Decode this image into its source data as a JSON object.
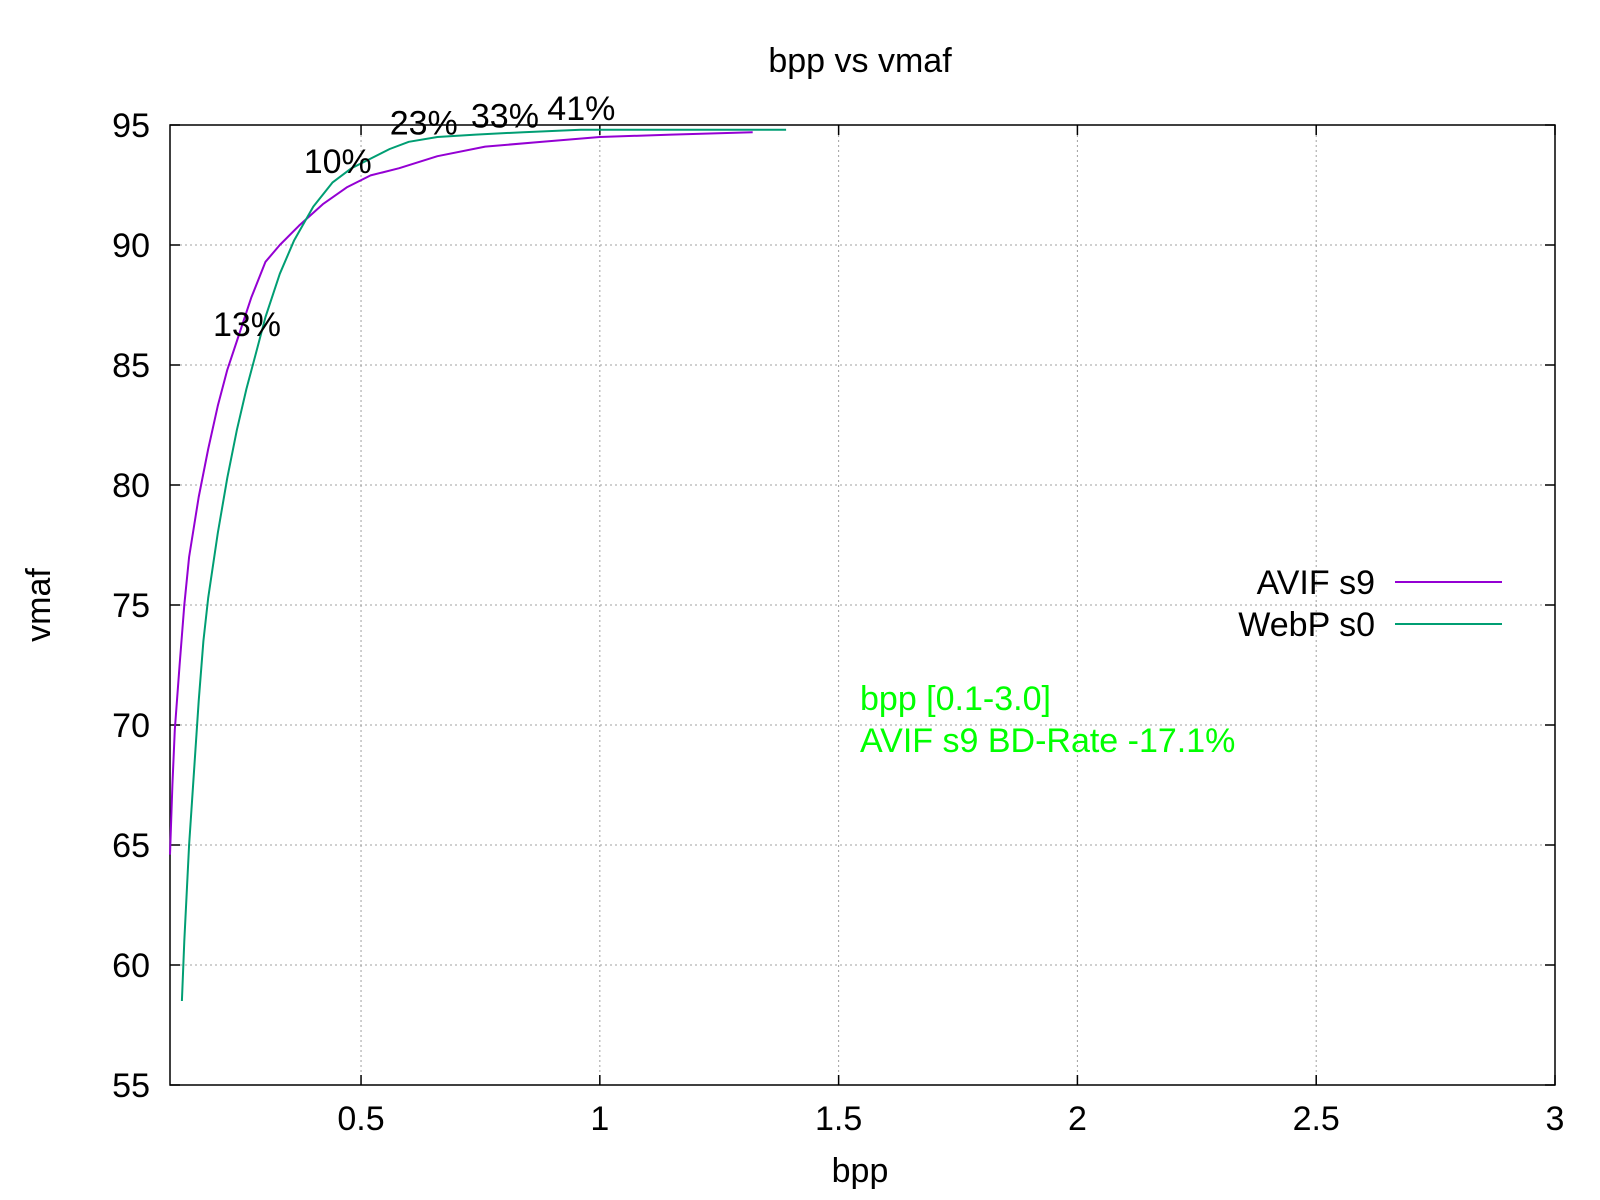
{
  "chart_data": {
    "type": "line",
    "title": "bpp vs vmaf",
    "xlabel": "bpp",
    "ylabel": "vmaf",
    "xlim": [
      0.1,
      3.0
    ],
    "ylim": [
      55,
      95
    ],
    "xticks": [
      0.5,
      1,
      1.5,
      2,
      2.5,
      3
    ],
    "xtick_labels": [
      "0.5",
      "1",
      "1.5",
      "2",
      "2.5",
      "3"
    ],
    "yticks": [
      55,
      60,
      65,
      70,
      75,
      80,
      85,
      90,
      95
    ],
    "ytick_labels": [
      "55",
      "60",
      "65",
      "70",
      "75",
      "80",
      "85",
      "90",
      "95"
    ],
    "grid": true,
    "legend_position": "right",
    "series": [
      {
        "name": "AVIF s9",
        "color": "#9400d3",
        "x": [
          0.1,
          0.105,
          0.11,
          0.12,
          0.13,
          0.14,
          0.16,
          0.18,
          0.2,
          0.22,
          0.24,
          0.27,
          0.3,
          0.33,
          0.37,
          0.42,
          0.47,
          0.52,
          0.58,
          0.66,
          0.76,
          0.88,
          1.0,
          1.15,
          1.32
        ],
        "values": [
          64.6,
          67.5,
          69.8,
          72.5,
          75.0,
          77.0,
          79.5,
          81.5,
          83.3,
          84.8,
          86.0,
          87.8,
          89.3,
          90.0,
          90.8,
          91.7,
          92.4,
          92.9,
          93.2,
          93.7,
          94.1,
          94.3,
          94.5,
          94.6,
          94.7
        ]
      },
      {
        "name": "WebP s0",
        "color": "#009e73",
        "x": [
          0.125,
          0.13,
          0.14,
          0.15,
          0.16,
          0.17,
          0.18,
          0.2,
          0.22,
          0.24,
          0.26,
          0.28,
          0.3,
          0.33,
          0.36,
          0.4,
          0.44,
          0.48,
          0.52,
          0.56,
          0.6,
          0.66,
          0.74,
          0.84,
          0.96,
          1.1,
          1.25,
          1.39
        ],
        "values": [
          58.5,
          61.0,
          65.0,
          68.0,
          71.0,
          73.5,
          75.3,
          78.0,
          80.3,
          82.3,
          84.0,
          85.5,
          87.0,
          88.8,
          90.2,
          91.6,
          92.6,
          93.2,
          93.6,
          94.0,
          94.3,
          94.5,
          94.6,
          94.7,
          94.8,
          94.8,
          94.8,
          94.8
        ]
      }
    ],
    "annotations": [
      {
        "text": "13%",
        "x": 0.19,
        "y": 86.2
      },
      {
        "text": "10%",
        "x": 0.38,
        "y": 93.0
      },
      {
        "text": "23%",
        "x": 0.56,
        "y": 94.6
      },
      {
        "text": "33%",
        "x": 0.73,
        "y": 94.9
      },
      {
        "text": "41%",
        "x": 0.89,
        "y": 95.2
      }
    ],
    "bdrate_lines": [
      "bpp [0.1-3.0]",
      "AVIF s9 BD-Rate -17.1%"
    ],
    "bdrate_color": "#00ff00"
  }
}
